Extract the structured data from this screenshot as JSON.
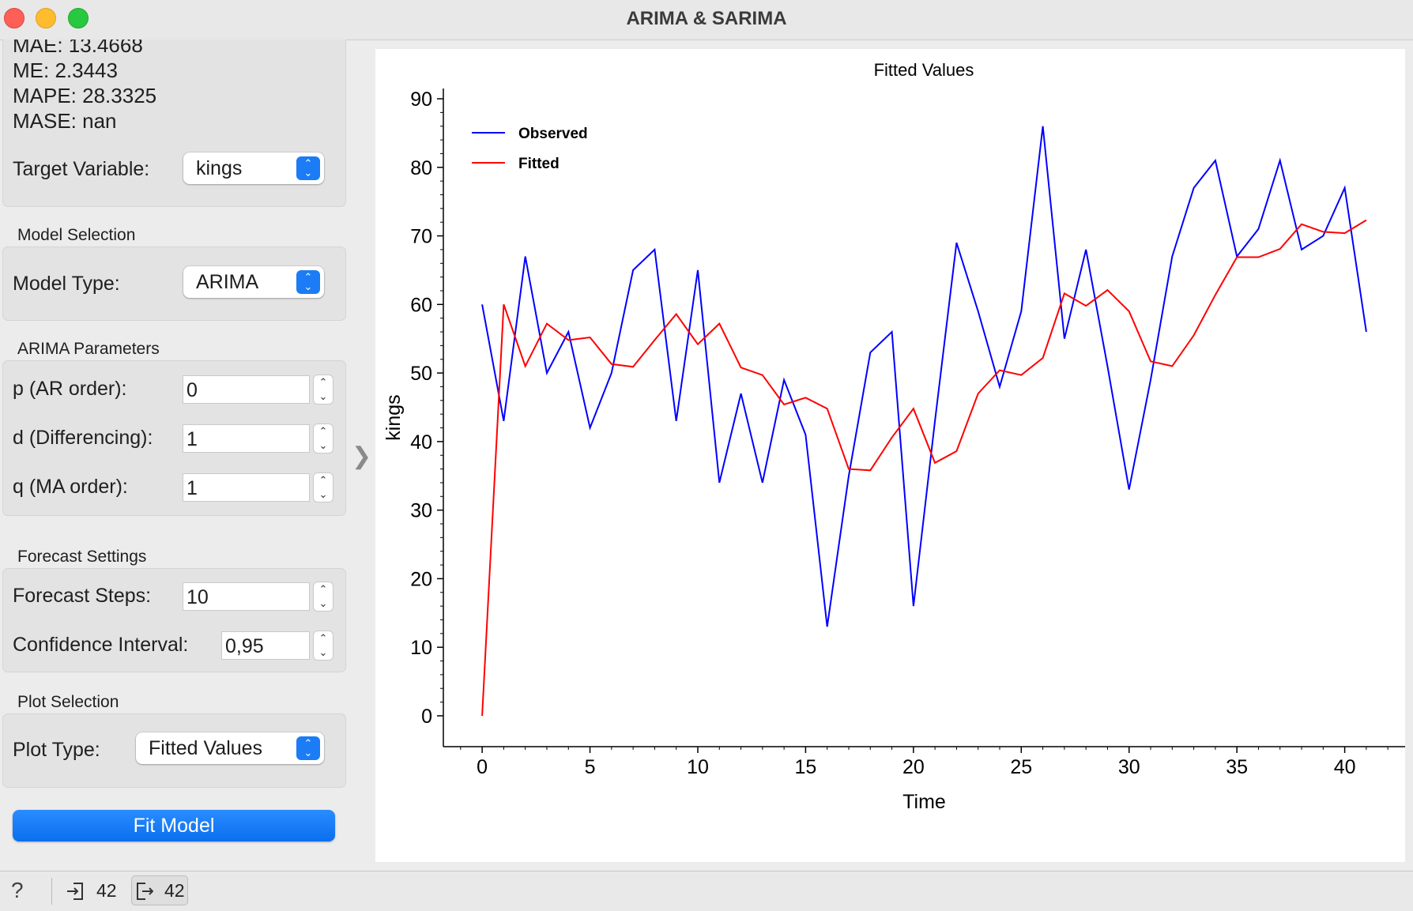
{
  "window": {
    "title": "ARIMA & SARIMA"
  },
  "metrics": {
    "mae": "MAE: 13.4668",
    "me": "ME: 2.3443",
    "mape": "MAPE: 28.3325",
    "mase": "MASE: nan"
  },
  "target": {
    "label": "Target Variable:",
    "value": "kings"
  },
  "model_selection": {
    "title": "Model Selection",
    "label": "Model Type:",
    "value": "ARIMA"
  },
  "arima": {
    "title": "ARIMA Parameters",
    "p_label": "p (AR order):",
    "p_value": "0",
    "d_label": "d (Differencing):",
    "d_value": "1",
    "q_label": "q (MA order):",
    "q_value": "1"
  },
  "forecast": {
    "title": "Forecast Settings",
    "steps_label": "Forecast Steps:",
    "steps_value": "10",
    "ci_label": "Confidence Interval:",
    "ci_value": "0,95"
  },
  "plot_selection": {
    "title": "Plot Selection",
    "label": "Plot Type:",
    "value": "Fitted Values"
  },
  "fit_button": "Fit Model",
  "status": {
    "input_count": "42",
    "output_count": "42"
  },
  "colors": {
    "observed": "#0000ff",
    "fitted": "#ff0000",
    "accent": "#1b7cf5"
  },
  "chart_data": {
    "type": "line",
    "title": "Fitted Values",
    "xlabel": "Time",
    "ylabel": "kings",
    "xlim": [
      -1.8,
      42.8
    ],
    "ylim": [
      -4.5,
      91.5
    ],
    "xticks": [
      0,
      5,
      10,
      15,
      20,
      25,
      30,
      35,
      40
    ],
    "yticks": [
      0,
      10,
      20,
      30,
      40,
      50,
      60,
      70,
      80,
      90
    ],
    "legend": "top-left",
    "grid": false,
    "x": [
      0,
      1,
      2,
      3,
      4,
      5,
      6,
      7,
      8,
      9,
      10,
      11,
      12,
      13,
      14,
      15,
      16,
      17,
      18,
      19,
      20,
      21,
      22,
      23,
      24,
      25,
      26,
      27,
      28,
      29,
      30,
      31,
      32,
      33,
      34,
      35,
      36,
      37,
      38,
      39,
      40,
      41
    ],
    "series": [
      {
        "name": "Observed",
        "color": "#0000ff",
        "values": [
          60,
          43,
          67,
          50,
          56,
          42,
          50,
          65,
          68,
          43,
          65,
          34,
          47,
          34,
          49,
          41,
          13,
          35,
          53,
          56,
          16,
          43,
          69,
          59,
          48,
          59,
          86,
          55,
          68,
          51,
          33,
          49,
          67,
          77,
          81,
          67,
          71,
          81,
          68,
          70,
          77,
          56
        ]
      },
      {
        "name": "Fitted",
        "color": "#ff0000",
        "values": [
          0,
          60,
          51,
          57.2,
          54.8,
          55.2,
          51.3,
          50.9,
          54.8,
          58.6,
          54.2,
          57.2,
          50.8,
          49.7,
          45.4,
          46.4,
          44.8,
          36,
          35.8,
          40.6,
          44.8,
          36.9,
          38.6,
          47,
          50.4,
          49.7,
          52.2,
          61.6,
          59.8,
          62.1,
          59,
          51.7,
          51,
          55.5,
          61.4,
          66.9,
          66.9,
          68.1,
          71.7,
          70.6,
          70.4,
          72.3
        ]
      }
    ]
  }
}
